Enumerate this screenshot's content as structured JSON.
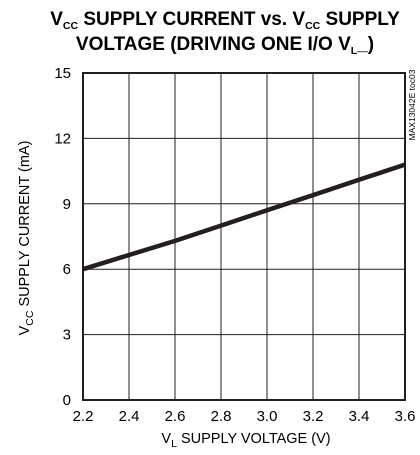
{
  "chart_data": {
    "type": "line",
    "title_line1": {
      "prefix": "V",
      "prefix_sub": "CC",
      "middle": " SUPPLY CURRENT vs. V",
      "middle_sub": "CC",
      "suffix": " SUPPLY"
    },
    "title_line2": {
      "prefix": "VOLTAGE (DRIVING ONE I/O V",
      "prefix_sub": "L",
      "suffix": "_)"
    },
    "xlabel": {
      "prefix": "V",
      "sub": "L",
      "suffix": " SUPPLY VOLTAGE (V)"
    },
    "ylabel": {
      "prefix": "V",
      "sub": "CC",
      "suffix": " SUPPLY CURRENT (mA)"
    },
    "side_note": "MAX13042E toc03",
    "xlim": [
      2.2,
      3.6
    ],
    "ylim": [
      0,
      15
    ],
    "x_ticks": [
      "2.2",
      "2.4",
      "2.6",
      "2.8",
      "3.0",
      "3.2",
      "3.4",
      "3.6"
    ],
    "y_ticks": [
      "0",
      "3",
      "6",
      "9",
      "12",
      "15"
    ],
    "grid": true,
    "line_color": "#231f20",
    "series": [
      {
        "x": [
          2.2,
          2.4,
          2.6,
          2.7,
          2.8,
          3.0,
          3.2,
          3.4,
          3.6
        ],
        "y": [
          6.0,
          6.65,
          7.3,
          7.65,
          8.0,
          8.7,
          9.4,
          10.1,
          10.8
        ]
      }
    ]
  }
}
